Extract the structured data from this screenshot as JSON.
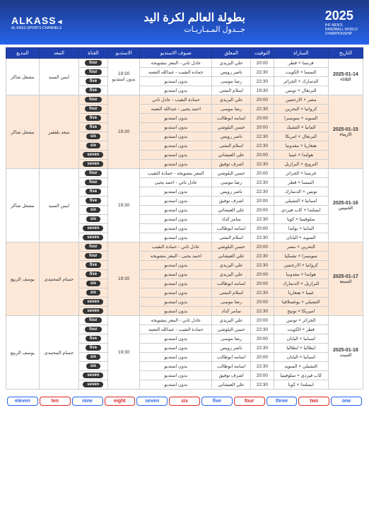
{
  "header": {
    "title1": "بطولة العالم لكرة اليد",
    "title2": "جــدول المـبـاريـات",
    "alkass": "ALKASS",
    "alkass_sub": "AL KASS SPORTS CHANNELS",
    "year": "2025",
    "champ1": "IHF MEN'S",
    "champ2": "HANDBALL WORLD",
    "champ3": "CHAMPIONSHIP"
  },
  "columns": [
    "التاريخ",
    "المباراة",
    "التوقيت",
    "المعلق",
    "ضيوف الاستديو",
    "الاستديو",
    "القناة",
    "المعد",
    "المذيع"
  ],
  "channels": [
    "four",
    "four",
    "five",
    "five",
    "four",
    "four",
    "five",
    "five",
    "six",
    "six",
    "seven",
    "seven",
    "four",
    "four",
    "five",
    "five",
    "six",
    "six",
    "seven",
    "seven",
    "four",
    "four",
    "five",
    "five",
    "six",
    "six",
    "seven",
    "seven",
    "four",
    "four",
    "five",
    "five",
    "six",
    "six",
    "seven",
    "seven"
  ],
  "days": [
    {
      "date": "2025-01-14",
      "day": "الثلاثاء",
      "alt": false,
      "studio": "19:30",
      "studio_extra": "بدون استديو",
      "presenter": "ايمن السيد",
      "host": "مشعل شاكر",
      "rows": [
        {
          "m": "فرنسا × قطر",
          "t": "20:00",
          "c": "علي اليزيدي",
          "g": "عادل ثاني - المعز بنشويخه"
        },
        {
          "m": "النمسا × الكويت",
          "t": "22:30",
          "c": "ناصر رويس",
          "g": "حماده النقيب - عبدالله النعمه"
        },
        {
          "m": "الدنمارك × الجزائر",
          "t": "22:30",
          "c": "رضا موسى",
          "g": "بدون استديو"
        },
        {
          "m": "البرتغال × تونس",
          "t": "19:30",
          "c": "اسلام المثنى",
          "g": "بدون استديو"
        }
      ]
    },
    {
      "date": "2025-01-15",
      "day": "الاربعاء",
      "alt": true,
      "studio": "19:30",
      "studio_extra": "",
      "presenter": "سعد بلفقير",
      "host": "مشعل شاكر",
      "rows": [
        {
          "m": "مصر × الارجنتين",
          "t": "20:00",
          "c": "علي اليزيدي",
          "g": "حمادة النقيب - عادل ثاني"
        },
        {
          "m": "كرواتيا × البحرين",
          "t": "22:30",
          "c": "رضا موسى",
          "g": "احمد يحيى - عبدالله النعمه"
        },
        {
          "m": "السويد × سويسرا",
          "t": "20:00",
          "c": "اسامه ابوطالب",
          "g": "بدون استديو"
        },
        {
          "m": "المانيا × التشيك",
          "t": "20:00",
          "c": "حسن البلوشي",
          "g": "بدون استديو"
        },
        {
          "m": "البرتغال × امريكا",
          "t": "22:30",
          "c": "ناصر رويس",
          "g": "بدون استديو"
        },
        {
          "m": "هنغاريا × مقدونيا",
          "t": "22:30",
          "c": "اسلام المثنى",
          "g": "بدون استديو"
        },
        {
          "m": "هولندا × غينيا",
          "t": "20:00",
          "c": "علي العيشاني",
          "g": "بدون استديو"
        },
        {
          "m": "النرويج × البرازيل",
          "t": "22:30",
          "c": "اشرف توفيق",
          "g": "بدون استديو"
        }
      ]
    },
    {
      "date": "2025-01-16",
      "day": "الخميس",
      "alt": false,
      "studio": "19:30",
      "studio_extra": "",
      "presenter": "ايمن السيد",
      "host": "مشعل شاكر",
      "rows": [
        {
          "m": "فرنسا × الجزائر",
          "t": "20:00",
          "c": "حسن البلوشي",
          "g": "المعز بنشويخه - حمادة النقيب"
        },
        {
          "m": "النمسا × قطر",
          "t": "22:30",
          "c": "رضا موسى",
          "g": "عادل ثاني - احمد يحيى"
        },
        {
          "m": "تونس × الدنمارك",
          "t": "22:30",
          "c": "ناصر رويس",
          "g": "بدون استديو"
        },
        {
          "m": "اسبانيا × التشيلي",
          "t": "20:00",
          "c": "اشرف توفيق",
          "g": "بدون استديو"
        },
        {
          "m": "ايسلندا × كاب فيردي",
          "t": "20:00",
          "c": "علي العيشاني",
          "g": "بدون استديو"
        },
        {
          "m": "سلوفينيا × كوبا",
          "t": "22:30",
          "c": "سامر كداد",
          "g": "بدون استديو"
        },
        {
          "m": "المانيا × بولندا",
          "t": "20:00",
          "c": "اسامه ابوطالب",
          "g": "بدون استديو"
        },
        {
          "m": "السويد × اليابان",
          "t": "22:30",
          "c": "اسلام المثنى",
          "g": "بدون استديو"
        }
      ]
    },
    {
      "date": "2025-01-17",
      "day": "الجمعة",
      "alt": true,
      "studio": "19:30",
      "studio_extra": "",
      "presenter": "حسام المحمدى",
      "host": "يوسف الربيع",
      "rows": [
        {
          "m": "البحرين × مصر",
          "t": "20:00",
          "c": "حسن البلوشي",
          "g": "عادل ثاني - حمادة النقيب"
        },
        {
          "m": "سويسرا × تشيكيا",
          "t": "22:30",
          "c": "علي العيشاني",
          "g": "احمد يحيى - المعز بنشويخه"
        },
        {
          "m": "كرواتيا × الارجنتين",
          "t": "22:30",
          "c": "علي اليزيدي",
          "g": "بدون استديو"
        },
        {
          "m": "هولندا × مقدونيا",
          "t": "20:00",
          "c": "علي اليزيدي",
          "g": "بدون استديو"
        },
        {
          "m": "البرازيل × الدنمارك",
          "t": "20:00",
          "c": "اسامه ابوطالب",
          "g": "بدون استديو"
        },
        {
          "m": "غينيا × هنغاريا",
          "t": "22:30",
          "c": "اسلام المثنى",
          "g": "بدون استديو"
        },
        {
          "m": "التشيلي × يوغسلافيا",
          "t": "20:00",
          "c": "رضا موسى",
          "g": "بدون استديو"
        },
        {
          "m": "اميريكا × تونيج",
          "t": "22:30",
          "c": "سامر كداد",
          "g": "بدون استديو"
        }
      ]
    },
    {
      "date": "2025-01-18",
      "day": "السبت",
      "alt": false,
      "studio": "19:30",
      "studio_extra": "",
      "presenter": "حسام المحمدى",
      "host": "يوسف الربيع",
      "rows": [
        {
          "m": "الجزائر × تونس",
          "t": "20:00",
          "c": "علي اليزيدي",
          "g": "عادل ثاني - المعز بنشويخه"
        },
        {
          "m": "قطر × الكويت",
          "t": "22:30",
          "c": "حسن البلوشي",
          "g": "حمادة النقيب - عبدالله النعمه"
        },
        {
          "m": "اسبانيا × اليابان",
          "t": "20:00",
          "c": "رضا موسى",
          "g": "بدون استديو"
        },
        {
          "m": "ايطاليا × ايطاليا",
          "t": "22:30",
          "c": "ناصر رويس",
          "g": "بدون استديو"
        },
        {
          "m": "اسبانيا × اليابان",
          "t": "20:00",
          "c": "اسامه ابوطالب",
          "g": "بدون استديو"
        },
        {
          "m": "التشيلي × السويد",
          "t": "22:30",
          "c": "اسامه ابوطالب",
          "g": "بدون استديو"
        },
        {
          "m": "كاب فيردي × سلوفينيا",
          "t": "20:00",
          "c": "اشرف توفيق",
          "g": "بدون استديو"
        },
        {
          "m": "ايسلندا × كوبا",
          "t": "22:30",
          "c": "علي العيشاني",
          "g": "بدون استديو"
        }
      ]
    }
  ],
  "footer": [
    "one",
    "two",
    "three",
    "four",
    "five",
    "six",
    "seven",
    "eight",
    "nine",
    "ten",
    "eleven"
  ]
}
